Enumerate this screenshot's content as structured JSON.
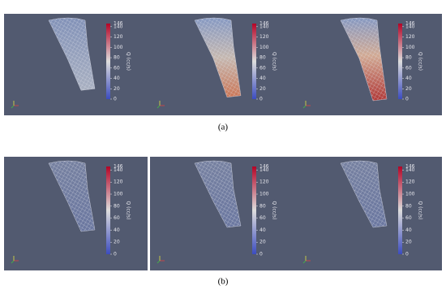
{
  "colorbar": {
    "title": "Q (cc/s)",
    "max": 146,
    "ticks": [
      0,
      20,
      40,
      60,
      80,
      100,
      120,
      140
    ]
  },
  "captions": [
    "(a)",
    "(b)"
  ]
}
